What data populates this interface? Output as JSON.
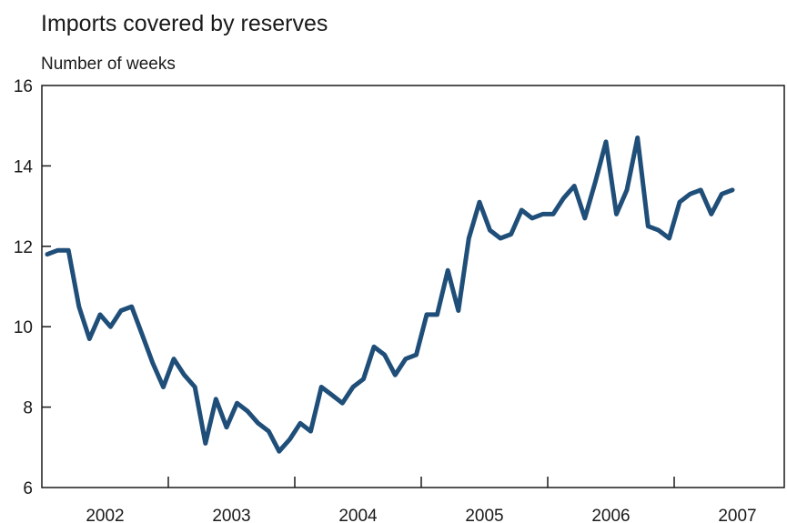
{
  "chart_data": {
    "type": "line",
    "title": "Imports covered by reserves",
    "ylabel": "Number of weeks",
    "xlabel": "",
    "ylim": [
      6,
      16
    ],
    "yticks": [
      6,
      8,
      10,
      12,
      14,
      16
    ],
    "xlim": [
      2002.0,
      2007.5
    ],
    "x_categories": [
      "2002",
      "2003",
      "2004",
      "2005",
      "2006",
      "2007"
    ],
    "grid": false,
    "line_color": "#1f4e79",
    "series": [
      {
        "x": [
          2002.0,
          2002.083,
          2002.167,
          2002.25,
          2002.333,
          2002.417,
          2002.5,
          2002.583,
          2002.667,
          2002.75,
          2002.833,
          2002.917,
          2003.0,
          2003.083,
          2003.167,
          2003.25,
          2003.333,
          2003.417,
          2003.5,
          2003.583,
          2003.667,
          2003.75,
          2003.833,
          2003.917,
          2004.0,
          2004.083,
          2004.167,
          2004.25,
          2004.333,
          2004.417,
          2004.5,
          2004.583,
          2004.667,
          2004.75,
          2004.833,
          2004.917,
          2005.0,
          2005.083,
          2005.167,
          2005.25,
          2005.333,
          2005.417,
          2005.5,
          2005.583,
          2005.667,
          2005.75,
          2005.833,
          2005.917,
          2006.0,
          2006.083,
          2006.167,
          2006.25,
          2006.333,
          2006.417,
          2006.5,
          2006.583,
          2006.667,
          2006.75,
          2006.833,
          2006.917,
          2007.0,
          2007.083,
          2007.167,
          2007.25,
          2007.333,
          2007.417,
          2007.5
        ],
        "values": [
          11.8,
          11.9,
          11.9,
          10.5,
          9.7,
          10.3,
          10.0,
          10.4,
          10.5,
          9.8,
          9.1,
          8.5,
          9.2,
          8.8,
          8.5,
          7.1,
          8.2,
          7.5,
          8.1,
          7.9,
          7.6,
          7.4,
          6.9,
          7.2,
          7.6,
          7.4,
          8.5,
          8.3,
          8.1,
          8.5,
          8.7,
          9.5,
          9.3,
          8.8,
          9.2,
          9.3,
          10.3,
          10.3,
          11.4,
          10.4,
          12.2,
          13.1,
          12.4,
          12.2,
          12.3,
          12.9,
          12.7,
          12.8,
          12.8,
          13.2,
          13.5,
          12.7,
          13.6,
          14.6,
          12.8,
          13.4,
          14.7,
          12.5,
          12.4,
          12.2,
          13.1,
          13.3,
          13.4,
          12.8,
          13.3,
          13.4,
          null
        ]
      }
    ]
  }
}
